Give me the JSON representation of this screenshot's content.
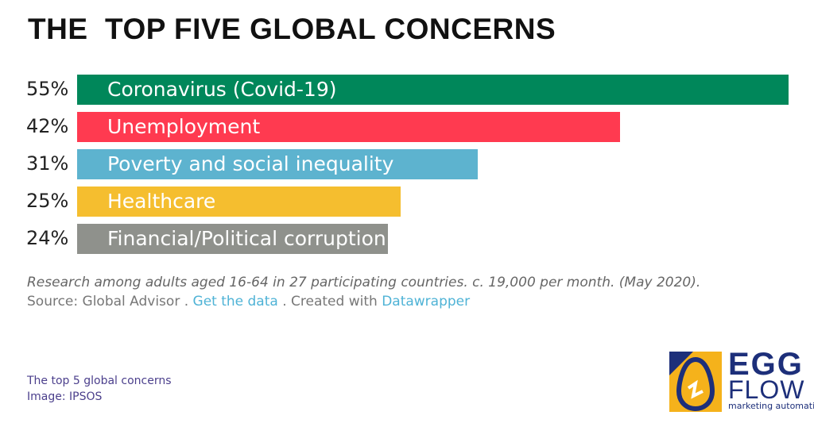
{
  "header": {
    "title": "THE  TOP FIVE GLOBAL CONCERNS"
  },
  "chart_data": {
    "type": "bar",
    "orientation": "horizontal",
    "categories": [
      "Coronavirus (Covid-19)",
      "Unemployment",
      "Poverty and social inequality",
      "Healthcare",
      "Financial/Political corruption"
    ],
    "values": [
      55,
      42,
      31,
      25,
      24
    ],
    "value_labels": [
      "55%",
      "42%",
      "31%",
      "25%",
      "24%"
    ],
    "colors": [
      "#00875a",
      "#ff3a50",
      "#5db3cf",
      "#f5be2f",
      "#8f918c"
    ],
    "title": "THE  TOP FIVE GLOBAL CONCERNS",
    "unit": "%",
    "xlim": [
      0,
      55
    ],
    "grid": false,
    "legend": "none"
  },
  "notes": {
    "research": "Research among adults aged 16-64 in 27 participating countries. c. 19,000 per month. (May 2020).",
    "source_prefix": "Source: Global Advisor . ",
    "get_data_link": "Get the data",
    "created_sep": " . Created with ",
    "datawrapper_link": "Datawrapper"
  },
  "caption": {
    "line1": "The top 5 global concerns",
    "line2": "Image: IPSOS"
  },
  "logo": {
    "word1": "EGG",
    "word2": "FLOW",
    "tagline": "marketing automation",
    "colors": {
      "yellow": "#f5b21b",
      "navy": "#1d2f7a"
    }
  }
}
